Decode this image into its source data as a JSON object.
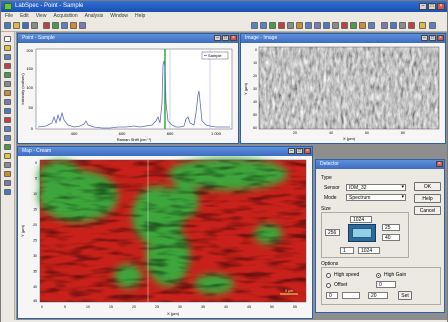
{
  "app": {
    "title": "LabSpec - Point - Sample",
    "menu": [
      "File",
      "Edit",
      "View",
      "Acquisition",
      "Analysis",
      "Window",
      "Help"
    ]
  },
  "spectrum_window": {
    "title": "Point - Sample",
    "legend": "Sample",
    "y_label": "Intensity (cnt/sec)",
    "x_label": "Raman Shift (cm⁻¹)",
    "y_ticks": [
      "200",
      "150",
      "100",
      "50",
      "0"
    ],
    "x_ticks": [
      "400",
      "600",
      "800",
      "1 000"
    ]
  },
  "image_window": {
    "title": "Image - Image",
    "y_label": "Y (µm)",
    "x_label": "X (µm)",
    "y_ticks": [
      "0",
      "10",
      "20",
      "30",
      "40",
      "50",
      "60"
    ],
    "x_ticks": [
      "20",
      "40",
      "60",
      "80"
    ]
  },
  "map_window": {
    "title": "Map - Cream",
    "y_label": "Y (µm)",
    "x_label": "X (µm)",
    "y_ticks": [
      "0",
      "5",
      "10",
      "15",
      "20",
      "25",
      "30",
      "35",
      "40",
      "45"
    ],
    "x_ticks": [
      "0",
      "5",
      "10",
      "15",
      "20",
      "25",
      "30",
      "35",
      "40",
      "45",
      "50",
      "55"
    ],
    "scale_label": "5 µm"
  },
  "detector_dialog": {
    "title": "Detector",
    "type_label": "Type",
    "sensor_label": "Sensor",
    "sensor_value": "IDM_32",
    "mode_label": "Mode",
    "mode_value": "Spectrum",
    "size_label": "Size",
    "size_top": "1024",
    "size_left": "256",
    "size_right_top": "25",
    "size_right_bottom": "40",
    "size_bottom_left": "1",
    "size_bottom_right": "1024",
    "options_label": "Options",
    "opt_highspeed": "High speed",
    "opt_highgain": "High Gain",
    "opt_offset": "Offset",
    "offset_value": "0",
    "lower_left": "0",
    "lower_mid": "20",
    "set_label": "Set",
    "ok": "OK",
    "help": "Help",
    "cancel": "Cancel"
  },
  "colors": {
    "titlebar": "#1a4fb0",
    "spectrum_line": "#5a6ccc",
    "map_green": "#3ea53a",
    "map_red": "#c8201a"
  }
}
